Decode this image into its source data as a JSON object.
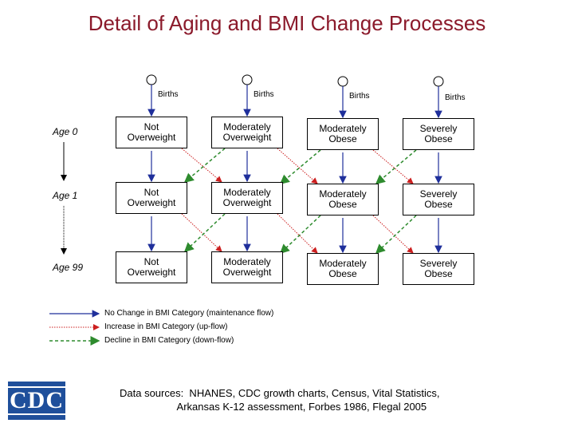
{
  "title": "Detail of Aging and BMI Change Processes",
  "births_label": "Births",
  "age_labels": [
    "Age 0",
    "Age 1",
    "Age 99"
  ],
  "categories": [
    [
      "Not",
      "Overweight"
    ],
    [
      "Moderately",
      "Overweight"
    ],
    [
      "Moderately",
      "Obese"
    ],
    [
      "Severely",
      "Obese"
    ]
  ],
  "legend": {
    "no_change": "No Change in BMI Category (maintenance flow)",
    "increase": "Increase in BMI Category (up-flow)",
    "decline": "Decline in BMI Category (down-flow)"
  },
  "colors": {
    "title": "#8b1a2b",
    "maintenance": "#1f2f9b",
    "upflow": "#cc1f1f",
    "downflow": "#2e8b2e"
  },
  "data_sources": {
    "line1": "Data sources:  NHANES, CDC growth charts, Census, Vital Statistics,",
    "line2": "                    Arkansas K-12 assessment, Forbes 1986, Flegal 2005"
  },
  "logo_text": "CDC"
}
